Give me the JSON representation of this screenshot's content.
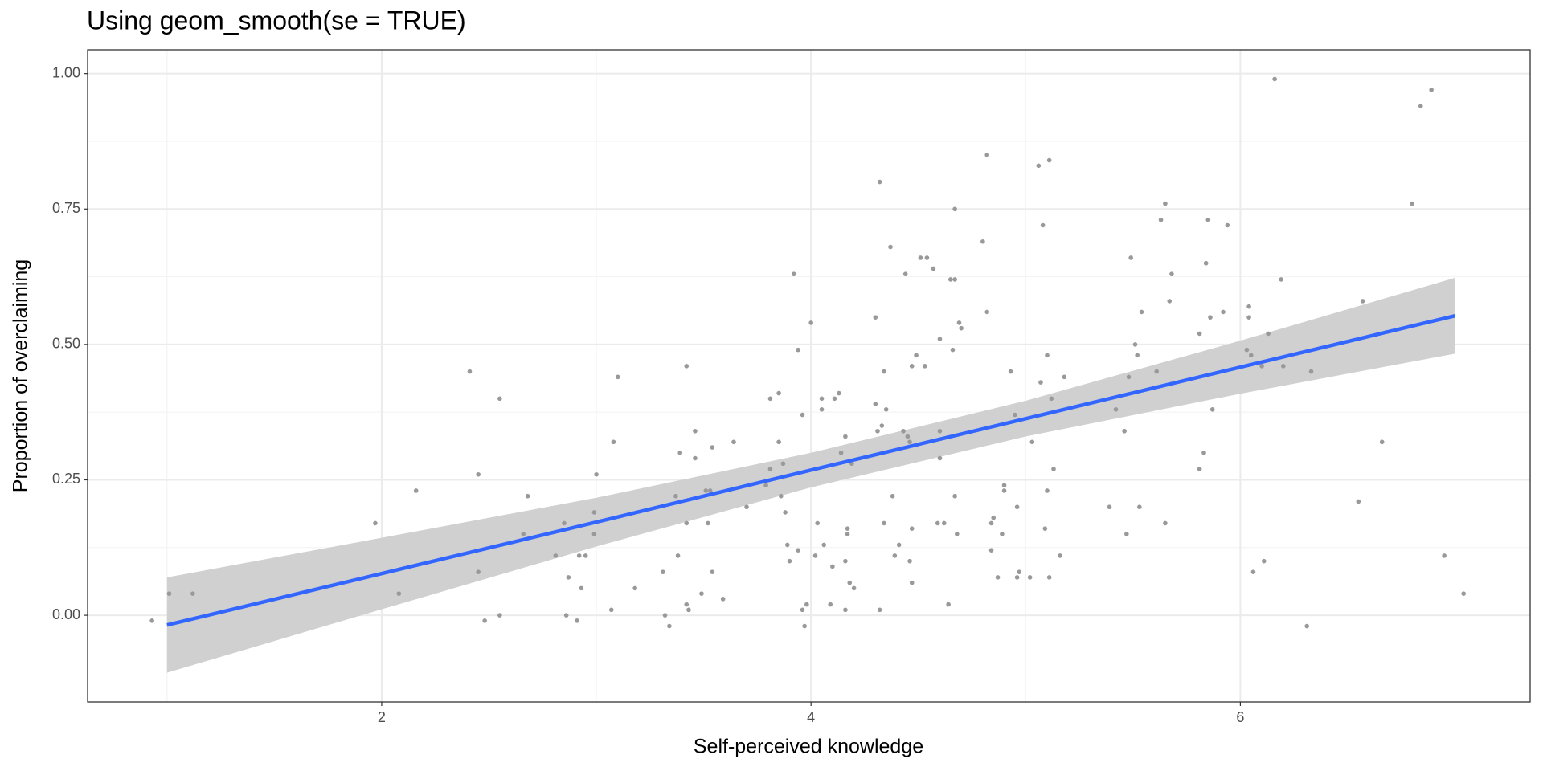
{
  "chart_data": {
    "type": "scatter",
    "title": "Using geom_smooth(se = TRUE)",
    "x_label": "Self-perceived knowledge",
    "y_label": "Proportion of overclaiming",
    "xlim": [
      0.63,
      7.35
    ],
    "ylim": [
      -0.16,
      1.044
    ],
    "xticks": [
      2,
      4,
      6
    ],
    "yticks": [
      {
        "value": 0,
        "label": "0.00"
      },
      {
        "value": 0.25,
        "label": "0.25"
      },
      {
        "value": 0.5,
        "label": "0.50"
      },
      {
        "value": 0.75,
        "label": "0.75"
      },
      {
        "value": 1,
        "label": "1.00"
      }
    ],
    "xminor": [
      1,
      3,
      5,
      7
    ],
    "yminor": [
      -0.125,
      0.125,
      0.375,
      0.625,
      0.875
    ],
    "grid": true,
    "point_color": "#999999",
    "x": [
      0.93,
      1.01,
      1.12,
      1.97,
      2.08,
      2.16,
      2.41,
      2.45,
      2.45,
      2.48,
      2.55,
      2.55,
      2.68,
      2.66,
      2.81,
      2.85,
      2.87,
      2.86,
      2.91,
      2.93,
      2.92,
      2.95,
      2.99,
      2.99,
      3.0,
      3.07,
      3.08,
      3.1,
      3.18,
      3.31,
      3.32,
      3.34,
      3.37,
      3.38,
      3.39,
      3.42,
      3.43,
      3.42,
      3.42,
      3.46,
      3.46,
      3.49,
      3.51,
      3.52,
      3.53,
      3.54,
      3.54,
      3.59,
      3.64,
      3.7,
      3.79,
      3.81,
      3.81,
      3.85,
      3.85,
      3.86,
      3.87,
      3.88,
      3.89,
      3.9,
      3.92,
      3.94,
      3.94,
      3.96,
      3.96,
      3.97,
      3.98,
      4.0,
      4.02,
      4.03,
      4.05,
      4.05,
      4.06,
      4.09,
      4.11,
      4.1,
      4.13,
      4.14,
      4.16,
      4.16,
      4.17,
      4.17,
      4.16,
      4.18,
      4.19,
      4.2,
      4.3,
      4.3,
      4.31,
      4.32,
      4.32,
      4.33,
      4.34,
      4.34,
      4.35,
      4.37,
      4.38,
      4.39,
      4.41,
      4.43,
      4.44,
      4.45,
      4.46,
      4.46,
      4.47,
      4.47,
      4.47,
      4.49,
      4.51,
      4.53,
      4.54,
      4.57,
      4.59,
      4.6,
      4.6,
      4.6,
      4.62,
      4.64,
      4.65,
      4.66,
      4.67,
      4.67,
      4.67,
      4.68,
      4.69,
      4.7,
      4.8,
      4.82,
      4.82,
      4.84,
      4.84,
      4.85,
      4.87,
      4.89,
      4.9,
      4.9,
      4.93,
      4.95,
      4.96,
      4.96,
      4.97,
      5.02,
      5.03,
      5.06,
      5.07,
      5.08,
      5.09,
      5.1,
      5.1,
      5.11,
      5.11,
      5.12,
      5.13,
      5.16,
      5.18,
      5.39,
      5.42,
      5.46,
      5.47,
      5.48,
      5.49,
      5.51,
      5.52,
      5.53,
      5.54,
      5.61,
      5.63,
      5.65,
      5.65,
      5.67,
      5.68,
      5.81,
      5.81,
      5.83,
      5.84,
      5.85,
      5.86,
      5.87,
      5.92,
      5.94,
      6.03,
      6.04,
      6.04,
      6.05,
      6.06,
      6.1,
      6.11,
      6.13,
      6.16,
      6.19,
      6.2,
      6.31,
      6.33,
      6.55,
      6.57,
      6.66,
      6.8,
      6.84,
      6.89,
      6.95,
      7.04
    ],
    "y": [
      -0.01,
      0.04,
      0.04,
      0.17,
      0.04,
      0.23,
      0.45,
      0.26,
      0.08,
      -0.01,
      0.4,
      0.0,
      0.22,
      0.15,
      0.11,
      0.17,
      0.07,
      0.0,
      -0.01,
      0.05,
      0.11,
      0.11,
      0.19,
      0.15,
      0.26,
      0.01,
      0.32,
      0.44,
      0.05,
      0.08,
      0.0,
      -0.02,
      0.22,
      0.11,
      0.3,
      0.02,
      0.01,
      0.17,
      0.46,
      0.34,
      0.29,
      0.04,
      0.23,
      0.17,
      0.23,
      0.08,
      0.31,
      0.03,
      0.32,
      0.2,
      0.24,
      0.27,
      0.4,
      0.41,
      0.32,
      0.22,
      0.28,
      0.19,
      0.13,
      0.1,
      0.63,
      0.49,
      0.12,
      0.37,
      0.01,
      -0.02,
      0.02,
      0.54,
      0.11,
      0.17,
      0.4,
      0.38,
      0.13,
      0.02,
      0.4,
      0.09,
      0.41,
      0.3,
      0.1,
      0.33,
      0.16,
      0.15,
      0.01,
      0.06,
      0.28,
      0.05,
      0.55,
      0.39,
      0.34,
      0.01,
      0.8,
      0.35,
      0.45,
      0.17,
      0.38,
      0.68,
      0.22,
      0.11,
      0.13,
      0.34,
      0.63,
      0.33,
      0.32,
      0.1,
      0.46,
      0.16,
      0.06,
      0.48,
      0.66,
      0.46,
      0.66,
      0.64,
      0.17,
      0.51,
      0.29,
      0.34,
      0.17,
      0.02,
      0.62,
      0.49,
      0.62,
      0.75,
      0.22,
      0.15,
      0.54,
      0.53,
      0.69,
      0.85,
      0.56,
      0.17,
      0.12,
      0.18,
      0.07,
      0.15,
      0.23,
      0.24,
      0.45,
      0.37,
      0.07,
      0.2,
      0.08,
      0.07,
      0.32,
      0.83,
      0.43,
      0.72,
      0.16,
      0.23,
      0.48,
      0.84,
      0.07,
      0.4,
      0.27,
      0.11,
      0.44,
      0.2,
      0.38,
      0.34,
      0.15,
      0.44,
      0.66,
      0.5,
      0.48,
      0.2,
      0.56,
      0.45,
      0.73,
      0.76,
      0.17,
      0.58,
      0.63,
      0.52,
      0.27,
      0.3,
      0.65,
      0.73,
      0.55,
      0.38,
      0.56,
      0.72,
      0.49,
      0.57,
      0.55,
      0.48,
      0.08,
      0.46,
      0.1,
      0.52,
      0.99,
      0.62,
      0.46,
      -0.02,
      0.45,
      0.21,
      0.58,
      0.32,
      0.76,
      0.94,
      0.97,
      0.11,
      0.04
    ],
    "smooth": {
      "color": "#3366FF",
      "fill": "#d0d0d0",
      "x": [
        1,
        2,
        3,
        4,
        5,
        6,
        7
      ],
      "y": [
        -0.018,
        0.077,
        0.172,
        0.268,
        0.363,
        0.458,
        0.553
      ],
      "ymin": [
        -0.106,
        0.011,
        0.127,
        0.236,
        0.33,
        0.409,
        0.483
      ],
      "ymax": [
        0.07,
        0.143,
        0.217,
        0.3,
        0.396,
        0.507,
        0.623
      ]
    }
  }
}
